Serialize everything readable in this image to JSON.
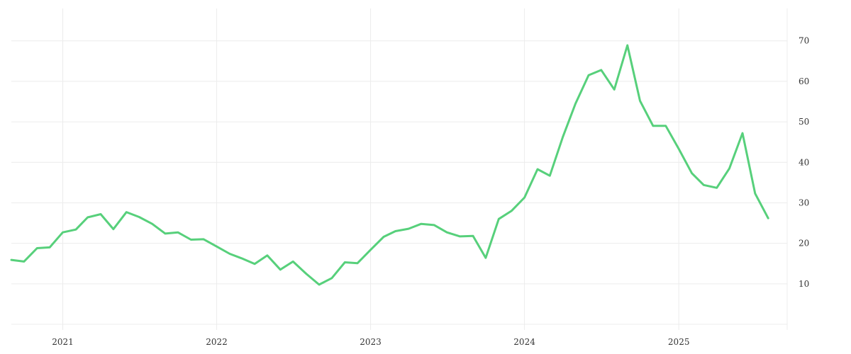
{
  "chart_data": {
    "type": "line",
    "grid": true,
    "legend": "none",
    "x_axis": {
      "type": "date",
      "ticks": [
        {
          "label": "2021",
          "date": "2021-01-01"
        },
        {
          "label": "2022",
          "date": "2022-01-01"
        },
        {
          "label": "2023",
          "date": "2023-01-01"
        },
        {
          "label": "2024",
          "date": "2024-01-01"
        },
        {
          "label": "2025",
          "date": "2025-01-01"
        }
      ],
      "range": [
        "2020-09-01",
        "2025-09-15"
      ]
    },
    "y_axis": {
      "position": "right",
      "ticks": [
        10,
        20,
        30,
        40,
        50,
        60,
        70
      ],
      "range": [
        0,
        78
      ]
    },
    "series": [
      {
        "color": "#57d07b",
        "points": [
          [
            "2020-09-01",
            15.9
          ],
          [
            "2020-10-01",
            15.5
          ],
          [
            "2020-11-01",
            18.8
          ],
          [
            "2020-12-01",
            19.0
          ],
          [
            "2021-01-01",
            22.7
          ],
          [
            "2021-02-01",
            23.4
          ],
          [
            "2021-03-01",
            26.4
          ],
          [
            "2021-04-01",
            27.2
          ],
          [
            "2021-05-01",
            23.5
          ],
          [
            "2021-06-01",
            27.7
          ],
          [
            "2021-07-01",
            26.5
          ],
          [
            "2021-08-01",
            24.8
          ],
          [
            "2021-09-01",
            22.4
          ],
          [
            "2021-10-01",
            22.7
          ],
          [
            "2021-11-01",
            20.9
          ],
          [
            "2021-12-01",
            21.0
          ],
          [
            "2022-01-01",
            19.2
          ],
          [
            "2022-02-01",
            17.4
          ],
          [
            "2022-03-01",
            16.3
          ],
          [
            "2022-04-01",
            14.9
          ],
          [
            "2022-05-01",
            17.0
          ],
          [
            "2022-06-01",
            13.5
          ],
          [
            "2022-07-01",
            15.5
          ],
          [
            "2022-08-01",
            12.5
          ],
          [
            "2022-09-01",
            9.8
          ],
          [
            "2022-10-01",
            11.4
          ],
          [
            "2022-11-01",
            15.3
          ],
          [
            "2022-12-01",
            15.1
          ],
          [
            "2023-01-01",
            18.4
          ],
          [
            "2023-02-01",
            21.6
          ],
          [
            "2023-03-01",
            23.0
          ],
          [
            "2023-04-01",
            23.6
          ],
          [
            "2023-05-01",
            24.8
          ],
          [
            "2023-06-01",
            24.5
          ],
          [
            "2023-07-01",
            22.7
          ],
          [
            "2023-08-01",
            21.7
          ],
          [
            "2023-09-01",
            21.8
          ],
          [
            "2023-10-01",
            16.4
          ],
          [
            "2023-11-01",
            26.0
          ],
          [
            "2023-12-01",
            28.0
          ],
          [
            "2024-01-01",
            31.3
          ],
          [
            "2024-02-01",
            38.3
          ],
          [
            "2024-03-01",
            36.7
          ],
          [
            "2024-04-01",
            46.3
          ],
          [
            "2024-05-01",
            54.5
          ],
          [
            "2024-06-01",
            61.5
          ],
          [
            "2024-07-01",
            62.8
          ],
          [
            "2024-08-01",
            58.0
          ],
          [
            "2024-09-01",
            68.9
          ],
          [
            "2024-10-01",
            55.2
          ],
          [
            "2024-11-01",
            49.0
          ],
          [
            "2024-12-01",
            49.0
          ],
          [
            "2025-01-01",
            43.3
          ],
          [
            "2025-02-01",
            37.3
          ],
          [
            "2025-03-01",
            34.4
          ],
          [
            "2025-04-01",
            33.7
          ],
          [
            "2025-05-01",
            38.5
          ],
          [
            "2025-06-01",
            47.2
          ],
          [
            "2025-07-01",
            32.3
          ],
          [
            "2025-08-01",
            26.2
          ]
        ]
      }
    ]
  }
}
